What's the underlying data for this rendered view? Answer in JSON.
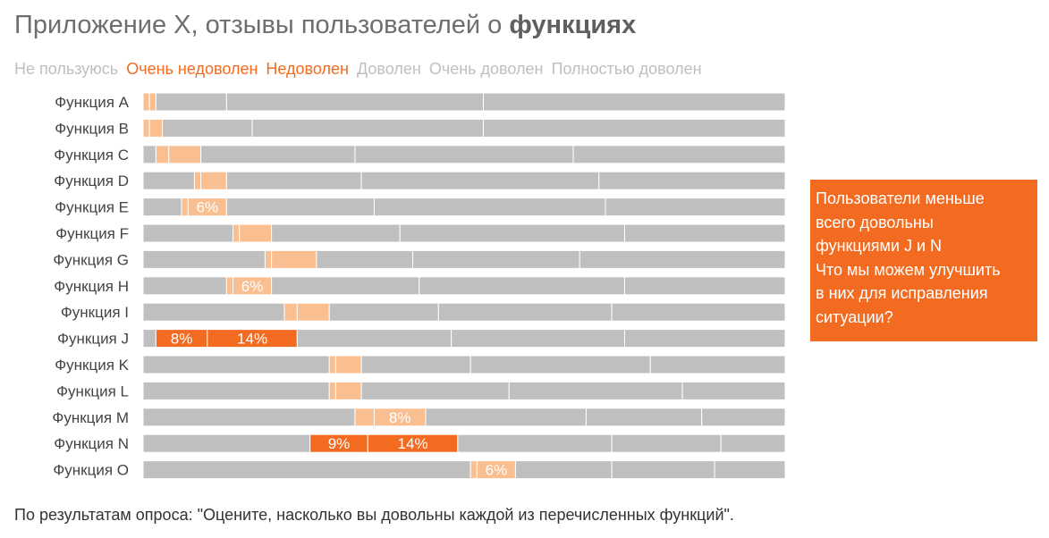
{
  "title": {
    "prefix": "Приложение X, отзывы пользователей о ",
    "bold": "функциях"
  },
  "footnote": "По результатам опроса: \"Оцените, насколько вы довольны каждой из перечисленных функций\".",
  "callout": {
    "lines": [
      "Пользователи меньше",
      "всего довольны",
      "функциями J и N",
      "Что мы можем улучшить",
      "в них для исправления",
      "ситуации?"
    ],
    "color": "#f26b21"
  },
  "colors": {
    "gray": "#bfbfbf",
    "light_orange": "#f9bf91",
    "dark_orange": "#f26b21",
    "legend_gray": "#bfbfbf",
    "legend_orange": "#f26b21"
  },
  "chart_data": {
    "type": "bar",
    "orientation": "horizontal",
    "stacked": true,
    "unit": "%",
    "categories": [
      "Функция A",
      "Функция B",
      "Функция C",
      "Функция D",
      "Функция E",
      "Функция F",
      "Функция G",
      "Функция H",
      "Функция I",
      "Функция J",
      "Функция K",
      "Функция L",
      "Функция M",
      "Функция N",
      "Функция O"
    ],
    "series": [
      {
        "name": "Не пользуюсь",
        "values": [
          0,
          0,
          2,
          8,
          6,
          14,
          19,
          13,
          22,
          2,
          29,
          29,
          33,
          26,
          51
        ]
      },
      {
        "name": "Очень недоволен",
        "values": [
          1,
          1,
          2,
          1,
          1,
          1,
          1,
          1,
          2,
          8,
          1,
          1,
          3,
          9,
          1
        ]
      },
      {
        "name": "Недоволен",
        "values": [
          1,
          2,
          5,
          4,
          6,
          5,
          7,
          6,
          5,
          14,
          4,
          4,
          8,
          14,
          6
        ]
      },
      {
        "name": "Доволен",
        "values": [
          11,
          14,
          24,
          21,
          23,
          20,
          15,
          23,
          17,
          24,
          17,
          23,
          25,
          24,
          15
        ]
      },
      {
        "name": "Очень доволен",
        "values": [
          40,
          36,
          34,
          37,
          36,
          35,
          26,
          32,
          27,
          27,
          28,
          27,
          18,
          17,
          16
        ]
      },
      {
        "name": "Полностью доволен",
        "values": [
          47,
          47,
          33,
          29,
          28,
          25,
          32,
          25,
          27,
          25,
          21,
          16,
          13,
          10,
          11
        ]
      }
    ],
    "data_labels": [
      {
        "category": "Функция E",
        "series": "Недоволен",
        "text": "6%"
      },
      {
        "category": "Функция H",
        "series": "Недоволен",
        "text": "6%"
      },
      {
        "category": "Функция J",
        "series": "Очень недоволен",
        "text": "8%"
      },
      {
        "category": "Функция J",
        "series": "Недоволен",
        "text": "14%"
      },
      {
        "category": "Функция M",
        "series": "Недоволен",
        "text": "8%"
      },
      {
        "category": "Функция N",
        "series": "Очень недоволен",
        "text": "9%"
      },
      {
        "category": "Функция N",
        "series": "Недоволен",
        "text": "14%"
      },
      {
        "category": "Функция O",
        "series": "Недоволен",
        "text": "6%"
      }
    ],
    "highlighted_categories": [
      "Функция J",
      "Функция N"
    ],
    "xlim": [
      0,
      100
    ],
    "grid": false,
    "legend_position": "top"
  }
}
